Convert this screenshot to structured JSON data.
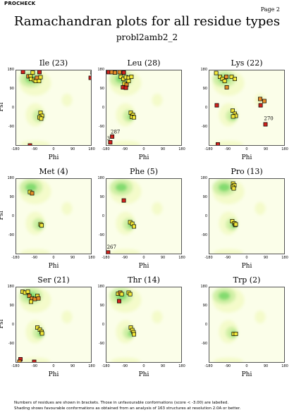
{
  "header": {
    "program": "PROCHECK",
    "page": "Page 2"
  },
  "title": "Ramachandran plots for all residue types",
  "subtitle": "probl2amb2_2",
  "footer": [
    "Numbers of residues are shown in brackets. Those in unfavourable conformations (score < -3.00) are labelled.",
    "Shading shows favourable conformations as obtained from an analysis of 163 structures at resolution 2.0A or better."
  ],
  "colors": {
    "yellow": "#f2e83a",
    "orange": "#e58d2a",
    "red": "#d0231e",
    "shade_light": "#f3fbc7",
    "shade_mid": "#cdf0a2",
    "shade_dark": "#7ad86a"
  },
  "chart_data": [
    {
      "type": "scatter",
      "title": "Ile (23)",
      "xlabel": "Phi",
      "ylabel": "Psi",
      "xlim": [
        -180,
        180
      ],
      "ylim": [
        -180,
        180
      ],
      "xticks": [
        "-180",
        "-90",
        "0",
        "90",
        "180"
      ],
      "yticks": [
        "180",
        "90",
        "0",
        "-90"
      ],
      "points": [
        {
          "phi": -148,
          "psi": 173,
          "c": "red"
        },
        {
          "phi": -122,
          "psi": 152,
          "c": "orange"
        },
        {
          "phi": -112,
          "psi": 152,
          "c": "yellow"
        },
        {
          "phi": -102,
          "psi": 170,
          "c": "yellow"
        },
        {
          "phi": -110,
          "psi": 140,
          "c": "yellow"
        },
        {
          "phi": -95,
          "psi": 135,
          "c": "yellow"
        },
        {
          "phi": -88,
          "psi": 130,
          "c": "yellow"
        },
        {
          "phi": -82,
          "psi": 145,
          "c": "orange"
        },
        {
          "phi": -72,
          "psi": 130,
          "c": "yellow"
        },
        {
          "phi": -70,
          "psi": 172,
          "c": "red"
        },
        {
          "phi": -65,
          "psi": 148,
          "c": "yellow"
        },
        {
          "phi": 172,
          "psi": 145,
          "c": "red"
        },
        {
          "phi": -65,
          "psi": -20,
          "c": "yellow"
        },
        {
          "phi": -58,
          "psi": -35,
          "c": "yellow"
        },
        {
          "phi": -70,
          "psi": -42,
          "c": "yellow"
        },
        {
          "phi": -62,
          "psi": -48,
          "c": "yellow"
        },
        {
          "phi": -115,
          "psi": -175,
          "c": "red"
        }
      ],
      "labels": [
        {
          "text": "8",
          "phi": 168,
          "psi": 160
        }
      ]
    },
    {
      "type": "scatter",
      "title": "Leu (28)",
      "xlabel": "Phi",
      "ylabel": "Psi",
      "xlim": [
        -180,
        180
      ],
      "ylim": [
        -180,
        180
      ],
      "xticks": [
        "-180",
        "-90",
        "0",
        "90",
        "180"
      ],
      "yticks": [
        "180",
        "90",
        "0",
        "-90"
      ],
      "points": [
        {
          "phi": -170,
          "psi": 172,
          "c": "red"
        },
        {
          "phi": -155,
          "psi": 172,
          "c": "orange"
        },
        {
          "phi": -140,
          "psi": 170,
          "c": "orange"
        },
        {
          "phi": -118,
          "psi": 172,
          "c": "orange"
        },
        {
          "phi": -98,
          "psi": 170,
          "c": "red"
        },
        {
          "phi": -112,
          "psi": 150,
          "c": "yellow"
        },
        {
          "phi": -100,
          "psi": 140,
          "c": "yellow"
        },
        {
          "phi": -88,
          "psi": 148,
          "c": "yellow"
        },
        {
          "phi": -75,
          "psi": 145,
          "c": "yellow"
        },
        {
          "phi": -95,
          "psi": 118,
          "c": "yellow"
        },
        {
          "phi": -85,
          "psi": 112,
          "c": "orange"
        },
        {
          "phi": -102,
          "psi": 100,
          "c": "red"
        },
        {
          "phi": -88,
          "psi": 98,
          "c": "red"
        },
        {
          "phi": -75,
          "psi": 130,
          "c": "yellow"
        },
        {
          "phi": -62,
          "psi": 150,
          "c": "yellow"
        },
        {
          "phi": -65,
          "psi": -20,
          "c": "yellow"
        },
        {
          "phi": -55,
          "psi": -30,
          "c": "yellow"
        },
        {
          "phi": -60,
          "psi": -40,
          "c": "yellow"
        },
        {
          "phi": -50,
          "psi": -42,
          "c": "yellow"
        },
        {
          "phi": -153,
          "psi": -133,
          "c": "red"
        },
        {
          "phi": -162,
          "psi": -160,
          "c": "red"
        }
      ],
      "labels": [
        {
          "text": "287",
          "phi": -160,
          "psi": -118
        },
        {
          "text": "3",
          "phi": -178,
          "psi": -150
        }
      ]
    },
    {
      "type": "scatter",
      "title": "Lys (22)",
      "xlabel": "Phi",
      "ylabel": "Psi",
      "xlim": [
        -180,
        180
      ],
      "ylim": [
        -180,
        180
      ],
      "xticks": [
        "-180",
        "-90",
        "0",
        "90",
        "180"
      ],
      "yticks": [
        "180",
        "90",
        "0",
        "-90"
      ],
      "points": [
        {
          "phi": -148,
          "psi": 168,
          "c": "yellow"
        },
        {
          "phi": -130,
          "psi": 150,
          "c": "yellow"
        },
        {
          "phi": -118,
          "psi": 140,
          "c": "yellow"
        },
        {
          "phi": -108,
          "psi": 130,
          "c": "yellow"
        },
        {
          "phi": -100,
          "psi": 150,
          "c": "orange"
        },
        {
          "phi": -98,
          "psi": 100,
          "c": "orange"
        },
        {
          "phi": -75,
          "psi": 150,
          "c": "yellow"
        },
        {
          "phi": -60,
          "psi": 140,
          "c": "yellow"
        },
        {
          "phi": -145,
          "psi": 15,
          "c": "red"
        },
        {
          "phi": -70,
          "psi": -10,
          "c": "yellow"
        },
        {
          "phi": -60,
          "psi": -25,
          "c": "yellow"
        },
        {
          "phi": -55,
          "psi": -35,
          "c": "yellow"
        },
        {
          "phi": -68,
          "psi": -38,
          "c": "yellow"
        },
        {
          "phi": 60,
          "psi": 45,
          "c": "orange"
        },
        {
          "phi": 80,
          "psi": 35,
          "c": "orange"
        },
        {
          "phi": 62,
          "psi": 15,
          "c": "red"
        },
        {
          "phi": 85,
          "psi": -75,
          "c": "red"
        },
        {
          "phi": -140,
          "psi": -170,
          "c": "red"
        }
      ],
      "labels": [
        {
          "text": "270",
          "phi": 78,
          "psi": -55
        }
      ]
    },
    {
      "type": "scatter",
      "title": "Met (4)",
      "xlabel": "Phi",
      "ylabel": "Psi",
      "xlim": [
        -180,
        180
      ],
      "ylim": [
        -180,
        180
      ],
      "xticks": [
        "-180",
        "-90",
        "0",
        "90",
        "180"
      ],
      "yticks": [
        "180",
        "90",
        "0",
        "-90"
      ],
      "points": [
        {
          "phi": -115,
          "psi": 118,
          "c": "yellow"
        },
        {
          "phi": -105,
          "psi": 112,
          "c": "orange"
        },
        {
          "phi": -65,
          "psi": -35,
          "c": "yellow"
        },
        {
          "phi": -60,
          "psi": -40,
          "c": "yellow"
        }
      ],
      "labels": []
    },
    {
      "type": "scatter",
      "title": "Phe (5)",
      "xlabel": "Phi",
      "ylabel": "Psi",
      "xlim": [
        -180,
        180
      ],
      "ylim": [
        -180,
        180
      ],
      "xticks": [
        "-180",
        "-90",
        "0",
        "90",
        "180"
      ],
      "yticks": [
        "180",
        "90",
        "0",
        "-90"
      ],
      "points": [
        {
          "phi": -98,
          "psi": 78,
          "c": "red"
        },
        {
          "phi": -68,
          "psi": -25,
          "c": "yellow"
        },
        {
          "phi": -58,
          "psi": -32,
          "c": "yellow"
        },
        {
          "phi": -50,
          "psi": -45,
          "c": "yellow"
        },
        {
          "phi": -172,
          "psi": -168,
          "c": "red"
        }
      ],
      "labels": [
        {
          "text": "267",
          "phi": -178,
          "psi": -150
        }
      ]
    },
    {
      "type": "scatter",
      "title": "Pro (13)",
      "xlabel": "Phi",
      "ylabel": "Psi",
      "xlim": [
        -180,
        180
      ],
      "ylim": [
        -180,
        180
      ],
      "xticks": [
        "-180",
        "-90",
        "0",
        "90",
        "180"
      ],
      "yticks": [
        "180",
        "90",
        "0",
        "-90"
      ],
      "points": [
        {
          "phi": -68,
          "psi": 158,
          "c": "yellow"
        },
        {
          "phi": -62,
          "psi": 150,
          "c": "yellow"
        },
        {
          "phi": -70,
          "psi": 142,
          "c": "yellow"
        },
        {
          "phi": -65,
          "psi": 135,
          "c": "yellow"
        },
        {
          "phi": -72,
          "psi": -20,
          "c": "yellow"
        },
        {
          "phi": -62,
          "psi": -30,
          "c": "yellow"
        },
        {
          "phi": -58,
          "psi": -38,
          "c": "yellow"
        },
        {
          "phi": -55,
          "psi": -35,
          "c": "yellow"
        }
      ],
      "labels": []
    },
    {
      "type": "scatter",
      "title": "Ser (21)",
      "xlabel": "Phi",
      "ylabel": "Psi",
      "xlim": [
        -180,
        180
      ],
      "ylim": [
        -180,
        180
      ],
      "xticks": [
        "-180",
        "-90",
        "0",
        "90",
        "180"
      ],
      "yticks": [
        "180",
        "90",
        "0",
        "-90"
      ],
      "points": [
        {
          "phi": -150,
          "psi": 160,
          "c": "yellow"
        },
        {
          "phi": -138,
          "psi": 155,
          "c": "yellow"
        },
        {
          "phi": -125,
          "psi": 160,
          "c": "yellow"
        },
        {
          "phi": -118,
          "psi": 140,
          "c": "orange"
        },
        {
          "phi": -105,
          "psi": 128,
          "c": "orange"
        },
        {
          "phi": -92,
          "psi": 125,
          "c": "orange"
        },
        {
          "phi": -80,
          "psi": 140,
          "c": "yellow"
        },
        {
          "phi": -75,
          "psi": 128,
          "c": "orange"
        },
        {
          "phi": -110,
          "psi": 112,
          "c": "yellow"
        },
        {
          "phi": -80,
          "psi": -10,
          "c": "yellow"
        },
        {
          "phi": -68,
          "psi": -20,
          "c": "yellow"
        },
        {
          "phi": -60,
          "psi": -30,
          "c": "yellow"
        },
        {
          "phi": -58,
          "psi": -38,
          "c": "yellow"
        },
        {
          "phi": -160,
          "psi": -160,
          "c": "red"
        },
        {
          "phi": -165,
          "psi": -172,
          "c": "orange"
        },
        {
          "phi": -95,
          "psi": -172,
          "c": "red"
        }
      ],
      "labels": []
    },
    {
      "type": "scatter",
      "title": "Thr (14)",
      "xlabel": "Phi",
      "ylabel": "Psi",
      "xlim": [
        -180,
        180
      ],
      "ylim": [
        -180,
        180
      ],
      "xticks": [
        "-180",
        "-90",
        "0",
        "90",
        "180"
      ],
      "yticks": [
        "180",
        "90",
        "0",
        "-90"
      ],
      "points": [
        {
          "phi": -125,
          "psi": 150,
          "c": "yellow"
        },
        {
          "phi": -115,
          "psi": 155,
          "c": "orange"
        },
        {
          "phi": -108,
          "psi": 148,
          "c": "yellow"
        },
        {
          "phi": -120,
          "psi": 115,
          "c": "red"
        },
        {
          "phi": -75,
          "psi": 155,
          "c": "yellow"
        },
        {
          "phi": -68,
          "psi": 148,
          "c": "yellow"
        },
        {
          "phi": -65,
          "psi": -10,
          "c": "yellow"
        },
        {
          "phi": -58,
          "psi": -22,
          "c": "yellow"
        },
        {
          "phi": -52,
          "psi": -32,
          "c": "yellow"
        },
        {
          "phi": -50,
          "psi": -42,
          "c": "yellow"
        }
      ],
      "labels": []
    },
    {
      "type": "scatter",
      "title": "Trp (2)",
      "xlabel": "Phi",
      "ylabel": "Psi",
      "xlim": [
        -180,
        180
      ],
      "ylim": [
        -180,
        180
      ],
      "xticks": [
        "-180",
        "-90",
        "0",
        "90",
        "180"
      ],
      "yticks": [
        "180",
        "90",
        "0",
        "-90"
      ],
      "points": [
        {
          "phi": -65,
          "psi": -40,
          "c": "yellow"
        },
        {
          "phi": -55,
          "psi": -40,
          "c": "yellow"
        }
      ],
      "labels": []
    }
  ]
}
